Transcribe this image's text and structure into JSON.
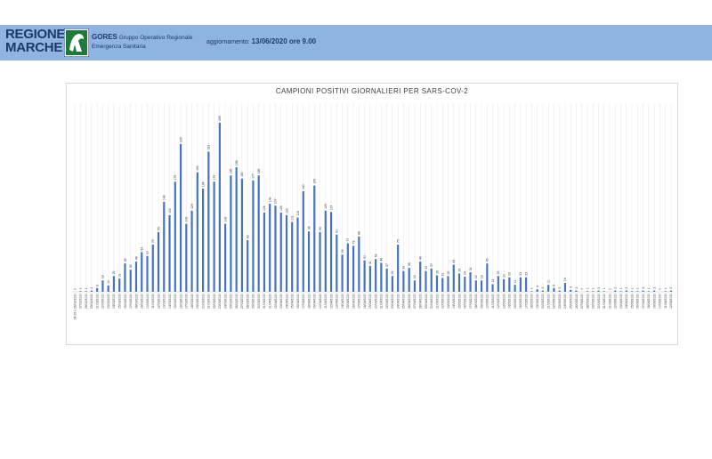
{
  "header": {
    "logo_line1": "REGIONE",
    "logo_line2": "MARCHE",
    "logo_icon": "regional-emblem-icon",
    "org_name": "GORES",
    "org_desc1": "Gruppo Operativo Regionale",
    "org_desc2": "Emergenza Sanitaria",
    "update_label": "aggiornamento:",
    "update_value": "13/06/2020 ore 9.00",
    "bg_color": "#8fb4e3",
    "text_color": "#1b3a6b"
  },
  "chart_data": {
    "type": "bar",
    "title": "CAMPIONI POSITIVI GIORNALIERI PER SARS-COV-2",
    "xlabel": "",
    "ylabel": "",
    "bar_color": "#4472c4",
    "grid": "vertical",
    "ylim": [
      0,
      300
    ],
    "categories": [
      "24-25 e 26/02/2020",
      "27/02/2020",
      "28/02/2020",
      "29/02/2020",
      "01/03/2020",
      "02/03/2020",
      "03/03/2020",
      "04/03/2020",
      "05/03/2020",
      "06/03/2020",
      "07/03/2020",
      "08/03/2020",
      "09/03/2020",
      "10/03/2020",
      "11/03/2020",
      "12/03/2020",
      "13/03/2020",
      "14/03/2020",
      "15/03/2020",
      "16/03/2020",
      "17/03/2020",
      "18/03/2020",
      "19/03/2020",
      "20/03/2020",
      "21/03/2020",
      "22/03/2020",
      "23/03/2020",
      "24/03/2020",
      "25/03/2020",
      "26/03/2020",
      "27/03/2020",
      "28/03/2020",
      "29/03/2020",
      "30/03/2020",
      "31/03/2020",
      "01/04/2020",
      "02/04/2020",
      "03/04/2020",
      "04/04/2020",
      "05/04/2020",
      "06/04/2020",
      "07/04/2020",
      "08/04/2020",
      "09/04/2020",
      "10/04/2020",
      "11/04/2020",
      "12/04/2020",
      "13/04/2020",
      "14/04/2020",
      "15/04/2020",
      "16/04/2020",
      "17/04/2020",
      "18/04/2020",
      "19/04/2020",
      "20/04/2020",
      "21/04/2020",
      "22/04/2020",
      "23/04/2020",
      "24/04/2020",
      "25/04/2020",
      "26/04/2020",
      "27/04/2020",
      "28/04/2020",
      "29/04/2020",
      "30/04/2020",
      "01/05/2020",
      "02/05/2020",
      "03/05/2020",
      "04/05/2020",
      "05/05/2020",
      "06/05/2020",
      "07/05/2020",
      "08/05/2020",
      "09/05/2020",
      "10/05/2020",
      "11/05/2020",
      "12/05/2020",
      "13/05/2020",
      "14/05/2020",
      "15/05/2020",
      "16/05/2020",
      "17/05/2020",
      "18/05/2020",
      "19/05/2020",
      "20/05/2020",
      "21/05/2020",
      "22/05/2020",
      "23/05/2020",
      "24/05/2020",
      "25/05/2020",
      "26/05/2020",
      "27/05/2020",
      "28/05/2020",
      "29/05/2020",
      "30/05/2020",
      "31/05/2020",
      "01/06/2020",
      "02/06/2020",
      "03/06/2020",
      "04/06/2020",
      "05/06/2020",
      "06/06/2020",
      "07/06/2020",
      "08/06/2020",
      "09/06/2020",
      "10/06/2020",
      "11/06/2020",
      "12/06/2020"
    ],
    "values": [
      0,
      1,
      1,
      2,
      6,
      18,
      10,
      25,
      21,
      45,
      35,
      48,
      63,
      57,
      75,
      95,
      143,
      122,
      175,
      235,
      108,
      129,
      190,
      164,
      223,
      175,
      269,
      108,
      185,
      198,
      180,
      82,
      177,
      185,
      126,
      140,
      137,
      126,
      122,
      111,
      118,
      160,
      96,
      169,
      95,
      129,
      127,
      91,
      59,
      77,
      73,
      88,
      50,
      41,
      52,
      46,
      37,
      25,
      75,
      33,
      38,
      18,
      48,
      33,
      37,
      26,
      22,
      25,
      43,
      29,
      24,
      31,
      18,
      18,
      45,
      12,
      25,
      20,
      23,
      11,
      23,
      23,
      1,
      4,
      2,
      11,
      6,
      2,
      14,
      3,
      2,
      0,
      1,
      1,
      2,
      1,
      0,
      2,
      1,
      2,
      1,
      1,
      2,
      1,
      2,
      0,
      1,
      2
    ]
  }
}
